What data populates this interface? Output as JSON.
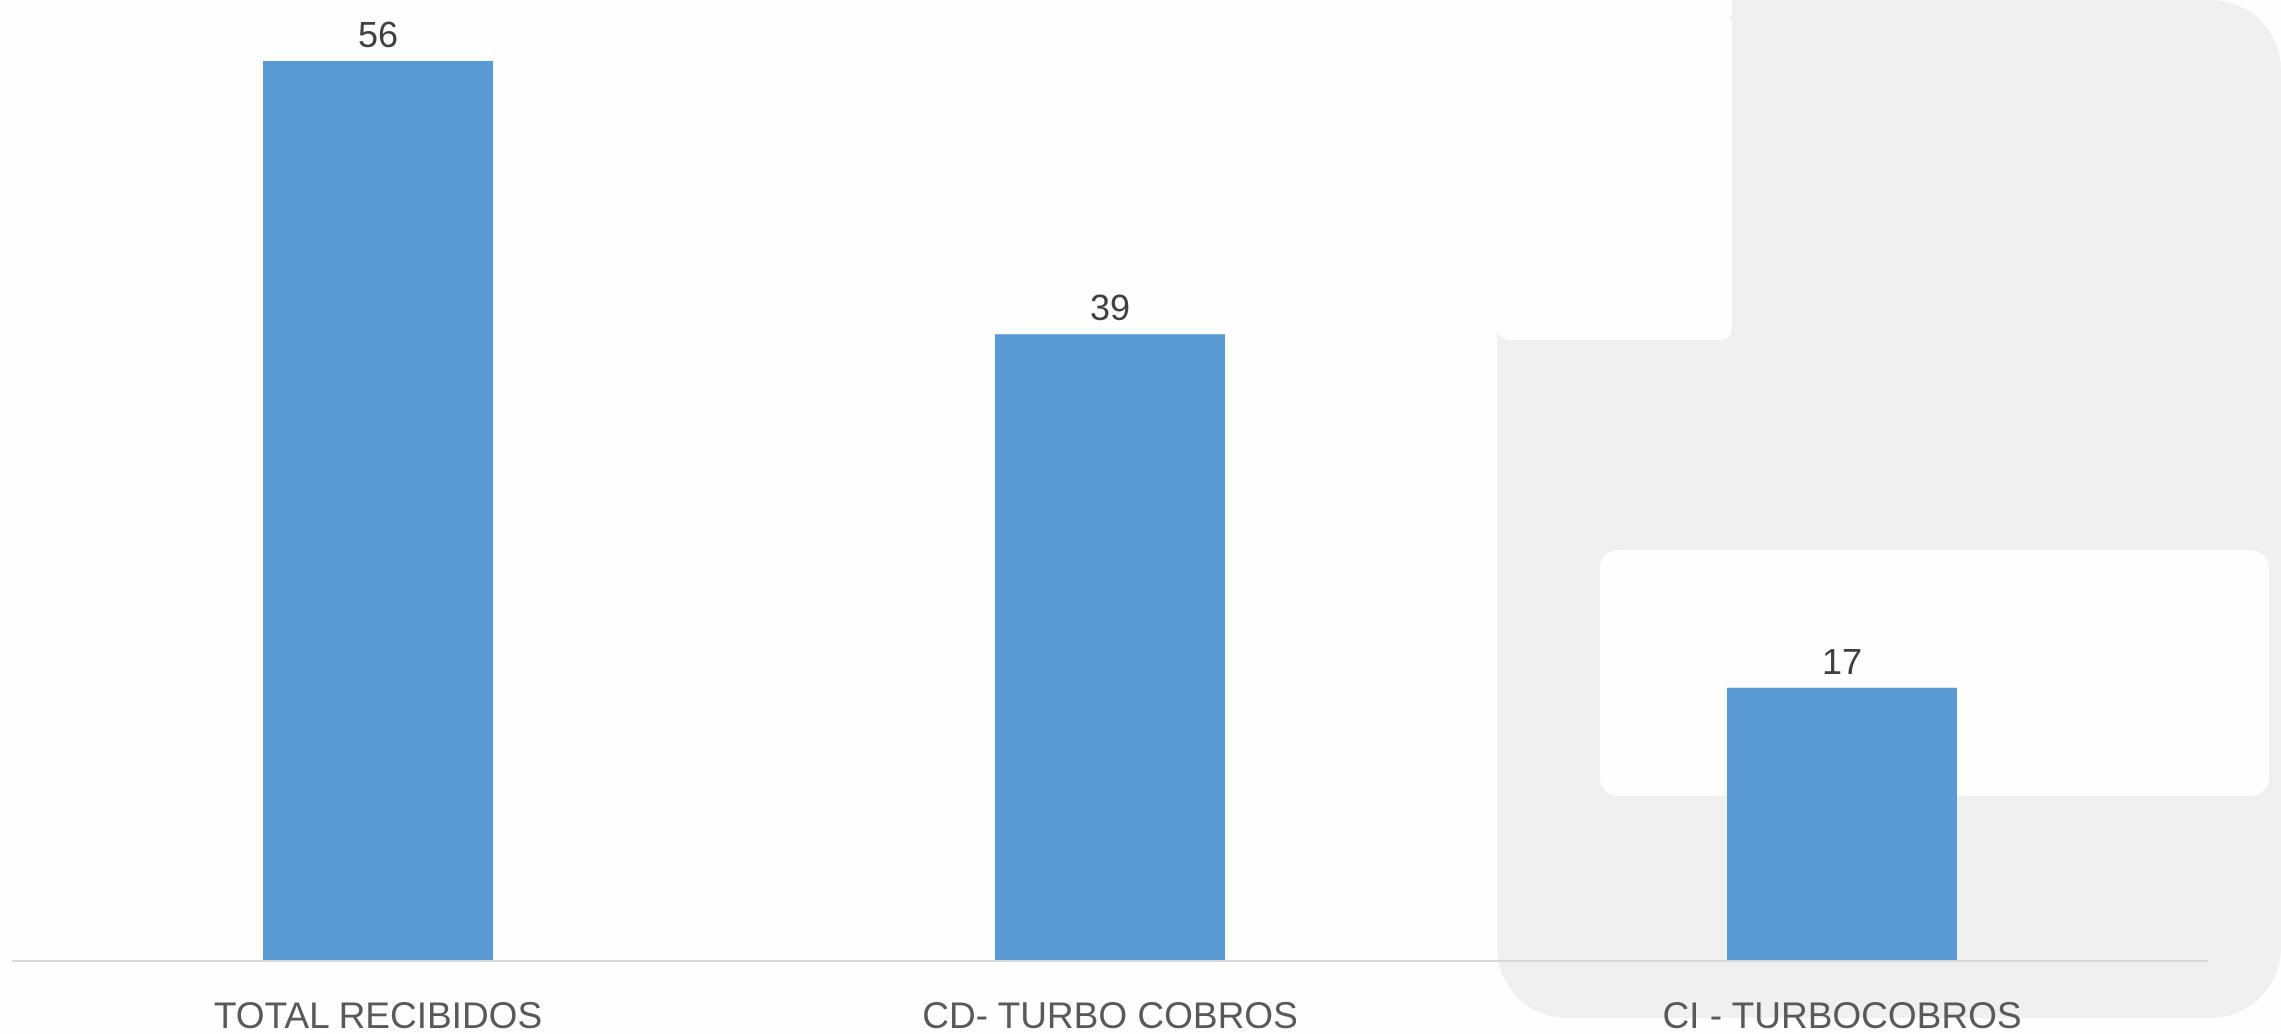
{
  "chart_data": {
    "type": "bar",
    "categories": [
      "TOTAL RECIBIDOS",
      "CD- TURBO COBROS",
      "CI - TURBOCOBROS"
    ],
    "values": [
      56,
      39,
      17
    ],
    "data_labels": [
      "56",
      "39",
      "17"
    ],
    "title": "",
    "xlabel": "",
    "ylabel": "",
    "ylim": [
      0,
      56
    ],
    "grid": false,
    "legend": "none"
  },
  "colors": {
    "bar": "#5b9bd5",
    "axis": "#d9d9d9",
    "value_text": "#404040",
    "category_text": "#595959",
    "background": "#fefefe",
    "backdrop": "#eff0ef"
  }
}
